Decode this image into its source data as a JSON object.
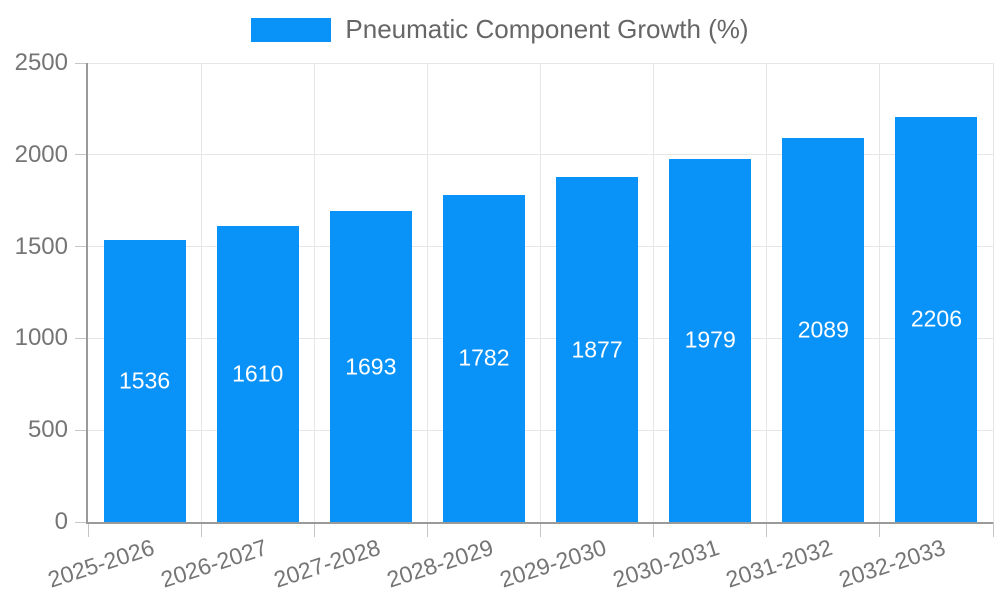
{
  "legend": {
    "position": "top",
    "items": [
      {
        "label": "Pneumatic Component Growth (%)",
        "swatch_color": "#0992f8"
      }
    ]
  },
  "chart_data": {
    "type": "bar",
    "title": "",
    "series_name": "Pneumatic Component Growth (%)",
    "categories": [
      "2025-2026",
      "2026-2027",
      "2027-2028",
      "2028-2029",
      "2029-2030",
      "2030-2031",
      "2031-2032",
      "2032-2033"
    ],
    "values": [
      1536,
      1610,
      1693,
      1782,
      1877,
      1979,
      2089,
      2206
    ],
    "xlabel": "",
    "ylabel": "",
    "ylim": [
      0,
      2500
    ],
    "yticks": [
      0,
      500,
      1000,
      1500,
      2000,
      2500
    ],
    "grid": true,
    "legend_position": "top",
    "bar_color": "#0992f8",
    "value_label_color": "#ffffff",
    "value_labels_inside_bars": true,
    "x_tick_rotation_deg": -18
  },
  "colors": {
    "background": "#ffffff",
    "axis_line": "#9a9a9a",
    "grid_line": "#e6e6e6",
    "tick_mark": "#c6c6c6",
    "tick_label": "#757575",
    "legend_text": "#666666"
  }
}
